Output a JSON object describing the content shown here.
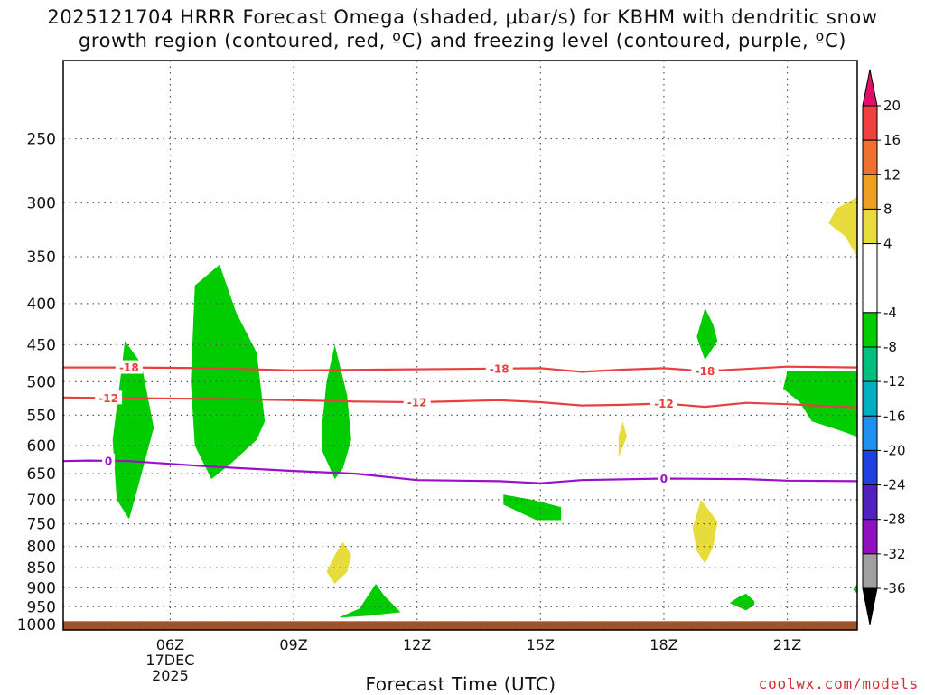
{
  "title_line1": "2025121704 HRRR Forecast Omega (shaded, μbar/s) for KBHM with dendritic snow",
  "title_line2": "growth region (contoured, red, ºC) and freezing level (contoured, purple, ºC)",
  "xlabel": "Forecast Time (UTC)",
  "credit": "coolwx.com/models",
  "chart_data": {
    "type": "time-height",
    "x_unit": "hours UTC since 2025-12-17 00Z",
    "xlim": [
      3.4,
      22.7
    ],
    "ylim_hpa": [
      200,
      1015
    ],
    "y_scale": "log-pressure (inverted)",
    "y_ticks": [
      250,
      300,
      350,
      400,
      450,
      500,
      550,
      600,
      650,
      700,
      750,
      800,
      850,
      900,
      950,
      1000
    ],
    "x_ticks": [
      {
        "x": 6,
        "lines": [
          "06Z",
          "17DEC",
          "2025"
        ]
      },
      {
        "x": 9,
        "lines": [
          "09Z"
        ]
      },
      {
        "x": 12,
        "lines": [
          "12Z"
        ]
      },
      {
        "x": 15,
        "lines": [
          "15Z"
        ]
      },
      {
        "x": 18,
        "lines": [
          "18Z"
        ]
      },
      {
        "x": 21,
        "lines": [
          "21Z"
        ]
      }
    ],
    "grid": true,
    "ground_pressure_hpa": 990,
    "contours": [
      {
        "name": "-18",
        "color": "#e84040",
        "points": [
          [
            3.4,
            480
          ],
          [
            5,
            480
          ],
          [
            7,
            481
          ],
          [
            9,
            484
          ],
          [
            11,
            483
          ],
          [
            13,
            482
          ],
          [
            15,
            481
          ],
          [
            16,
            486
          ],
          [
            17,
            483
          ],
          [
            18,
            481
          ],
          [
            19,
            485
          ],
          [
            20,
            482
          ],
          [
            21,
            479
          ],
          [
            22.7,
            480
          ]
        ],
        "labels": [
          5.0,
          14.0,
          19.0
        ]
      },
      {
        "name": "-12",
        "color": "#e84040",
        "points": [
          [
            3.4,
            523
          ],
          [
            5,
            524
          ],
          [
            7,
            525
          ],
          [
            9,
            527
          ],
          [
            10.5,
            529
          ],
          [
            12,
            530
          ],
          [
            14,
            527
          ],
          [
            15,
            530
          ],
          [
            16,
            535
          ],
          [
            17,
            534
          ],
          [
            18,
            532
          ],
          [
            19,
            537
          ],
          [
            20,
            531
          ],
          [
            21,
            533
          ],
          [
            22.7,
            538
          ]
        ],
        "labels": [
          4.5,
          12.0,
          18.0
        ]
      },
      {
        "name": "0",
        "color": "#9a10c8",
        "points": [
          [
            3.4,
            627
          ],
          [
            4,
            626
          ],
          [
            5,
            627
          ],
          [
            7,
            637
          ],
          [
            9,
            645
          ],
          [
            10.5,
            650
          ],
          [
            12,
            662
          ],
          [
            14,
            664
          ],
          [
            15,
            668
          ],
          [
            16,
            662
          ],
          [
            18,
            659
          ],
          [
            20,
            660
          ],
          [
            21,
            663
          ],
          [
            22.7,
            664
          ]
        ],
        "labels": [
          4.5,
          18.0
        ]
      }
    ],
    "shaded_cells": [
      {
        "color": "#00cc00",
        "value_range": [
          -8,
          -4
        ],
        "points": [
          [
            4.9,
            445
          ],
          [
            5.3,
            475
          ],
          [
            5.6,
            570
          ],
          [
            5.2,
            680
          ],
          [
            5.0,
            740
          ],
          [
            4.7,
            700
          ],
          [
            4.6,
            590
          ],
          [
            4.8,
            490
          ]
        ]
      },
      {
        "color": "#00cc00",
        "value_range": [
          -8,
          -4
        ],
        "points": [
          [
            7.2,
            358
          ],
          [
            7.6,
            410
          ],
          [
            8.1,
            460
          ],
          [
            8.3,
            560
          ],
          [
            8.1,
            590
          ],
          [
            7.5,
            630
          ],
          [
            7.0,
            660
          ],
          [
            6.6,
            600
          ],
          [
            6.5,
            500
          ],
          [
            6.6,
            380
          ]
        ]
      },
      {
        "color": "#00cc00",
        "value_range": [
          -8,
          -4
        ],
        "points": [
          [
            10.0,
            450
          ],
          [
            10.3,
            520
          ],
          [
            10.4,
            590
          ],
          [
            10.2,
            640
          ],
          [
            10.0,
            660
          ],
          [
            9.7,
            610
          ],
          [
            9.7,
            560
          ],
          [
            9.8,
            500
          ]
        ]
      },
      {
        "color": "#00cc00",
        "value_range": [
          -8,
          -4
        ],
        "points": [
          [
            11.0,
            890
          ],
          [
            11.2,
            920
          ],
          [
            11.6,
            965
          ],
          [
            10.8,
            975
          ],
          [
            10.1,
            980
          ],
          [
            10.6,
            955
          ]
        ]
      },
      {
        "color": "#00cc00",
        "value_range": [
          -8,
          -4
        ],
        "points": [
          [
            14.1,
            690
          ],
          [
            14.8,
            700
          ],
          [
            15.5,
            715
          ],
          [
            15.5,
            742
          ],
          [
            14.9,
            742
          ],
          [
            14.1,
            710
          ]
        ]
      },
      {
        "color": "#00cc00",
        "value_range": [
          -8,
          -4
        ],
        "points": [
          [
            19.0,
            405
          ],
          [
            19.2,
            425
          ],
          [
            19.3,
            445
          ],
          [
            19.0,
            470
          ],
          [
            18.9,
            455
          ],
          [
            18.8,
            440
          ]
        ]
      },
      {
        "color": "#00cc00",
        "value_range": [
          -8,
          -4
        ],
        "points": [
          [
            20.0,
            915
          ],
          [
            20.2,
            935
          ],
          [
            20.2,
            945
          ],
          [
            20.0,
            960
          ],
          [
            19.6,
            940
          ],
          [
            19.8,
            925
          ]
        ]
      },
      {
        "color": "#00cc00",
        "value_range": [
          -8,
          -4
        ],
        "points": [
          [
            21.0,
            485
          ],
          [
            22.7,
            485
          ],
          [
            22.7,
            585
          ],
          [
            22.3,
            575
          ],
          [
            21.6,
            560
          ],
          [
            21.3,
            530
          ],
          [
            20.9,
            510
          ]
        ]
      },
      {
        "color": "#00cc00",
        "value_range": [
          -8,
          -4
        ],
        "points": [
          [
            22.7,
            890
          ],
          [
            22.7,
            915
          ],
          [
            22.6,
            905
          ]
        ]
      },
      {
        "color": "#e8dc3c",
        "value_range": [
          4,
          8
        ],
        "points": [
          [
            22.7,
            295
          ],
          [
            22.7,
            350
          ],
          [
            22.4,
            330
          ],
          [
            22.0,
            318
          ],
          [
            22.2,
            305
          ]
        ]
      },
      {
        "color": "#e8dc3c",
        "value_range": [
          4,
          8
        ],
        "points": [
          [
            10.2,
            790
          ],
          [
            10.4,
            820
          ],
          [
            10.3,
            860
          ],
          [
            10.0,
            890
          ],
          [
            9.8,
            860
          ],
          [
            10.0,
            820
          ]
        ]
      },
      {
        "color": "#e8dc3c",
        "value_range": [
          4,
          8
        ],
        "points": [
          [
            17.0,
            560
          ],
          [
            17.1,
            585
          ],
          [
            16.9,
            620
          ],
          [
            16.9,
            585
          ]
        ]
      },
      {
        "color": "#e8dc3c",
        "value_range": [
          4,
          8
        ],
        "points": [
          [
            18.9,
            700
          ],
          [
            19.3,
            745
          ],
          [
            19.2,
            800
          ],
          [
            19.0,
            840
          ],
          [
            18.8,
            810
          ],
          [
            18.7,
            760
          ]
        ]
      }
    ],
    "colorbar": {
      "labels": [
        "20",
        "16",
        "12",
        "8",
        "4",
        "-4",
        "-8",
        "-12",
        "-16",
        "-20",
        "-24",
        "-28",
        "-32",
        "-36"
      ],
      "segments": [
        {
          "from": 20,
          "to": 16,
          "color": "#f04040"
        },
        {
          "from": 16,
          "to": 12,
          "color": "#f07030"
        },
        {
          "from": 12,
          "to": 8,
          "color": "#f0a020"
        },
        {
          "from": 8,
          "to": 4,
          "color": "#e8dc3c"
        },
        {
          "from": 4,
          "to": -4,
          "color": "#ffffff"
        },
        {
          "from": -4,
          "to": -8,
          "color": "#00cc00"
        },
        {
          "from": -8,
          "to": -12,
          "color": "#00c080"
        },
        {
          "from": -12,
          "to": -16,
          "color": "#00b0c0"
        },
        {
          "from": -16,
          "to": -20,
          "color": "#2090f0"
        },
        {
          "from": -20,
          "to": -24,
          "color": "#2040e0"
        },
        {
          "from": -24,
          "to": -28,
          "color": "#5020c0"
        },
        {
          "from": -28,
          "to": -32,
          "color": "#9010c0"
        },
        {
          "from": -32,
          "to": -36,
          "color": "#a0a0a0"
        }
      ],
      "top_arrow_color": "#e0106a",
      "bottom_arrow_color": "#000000"
    },
    "ground_color": "#a0522d"
  }
}
